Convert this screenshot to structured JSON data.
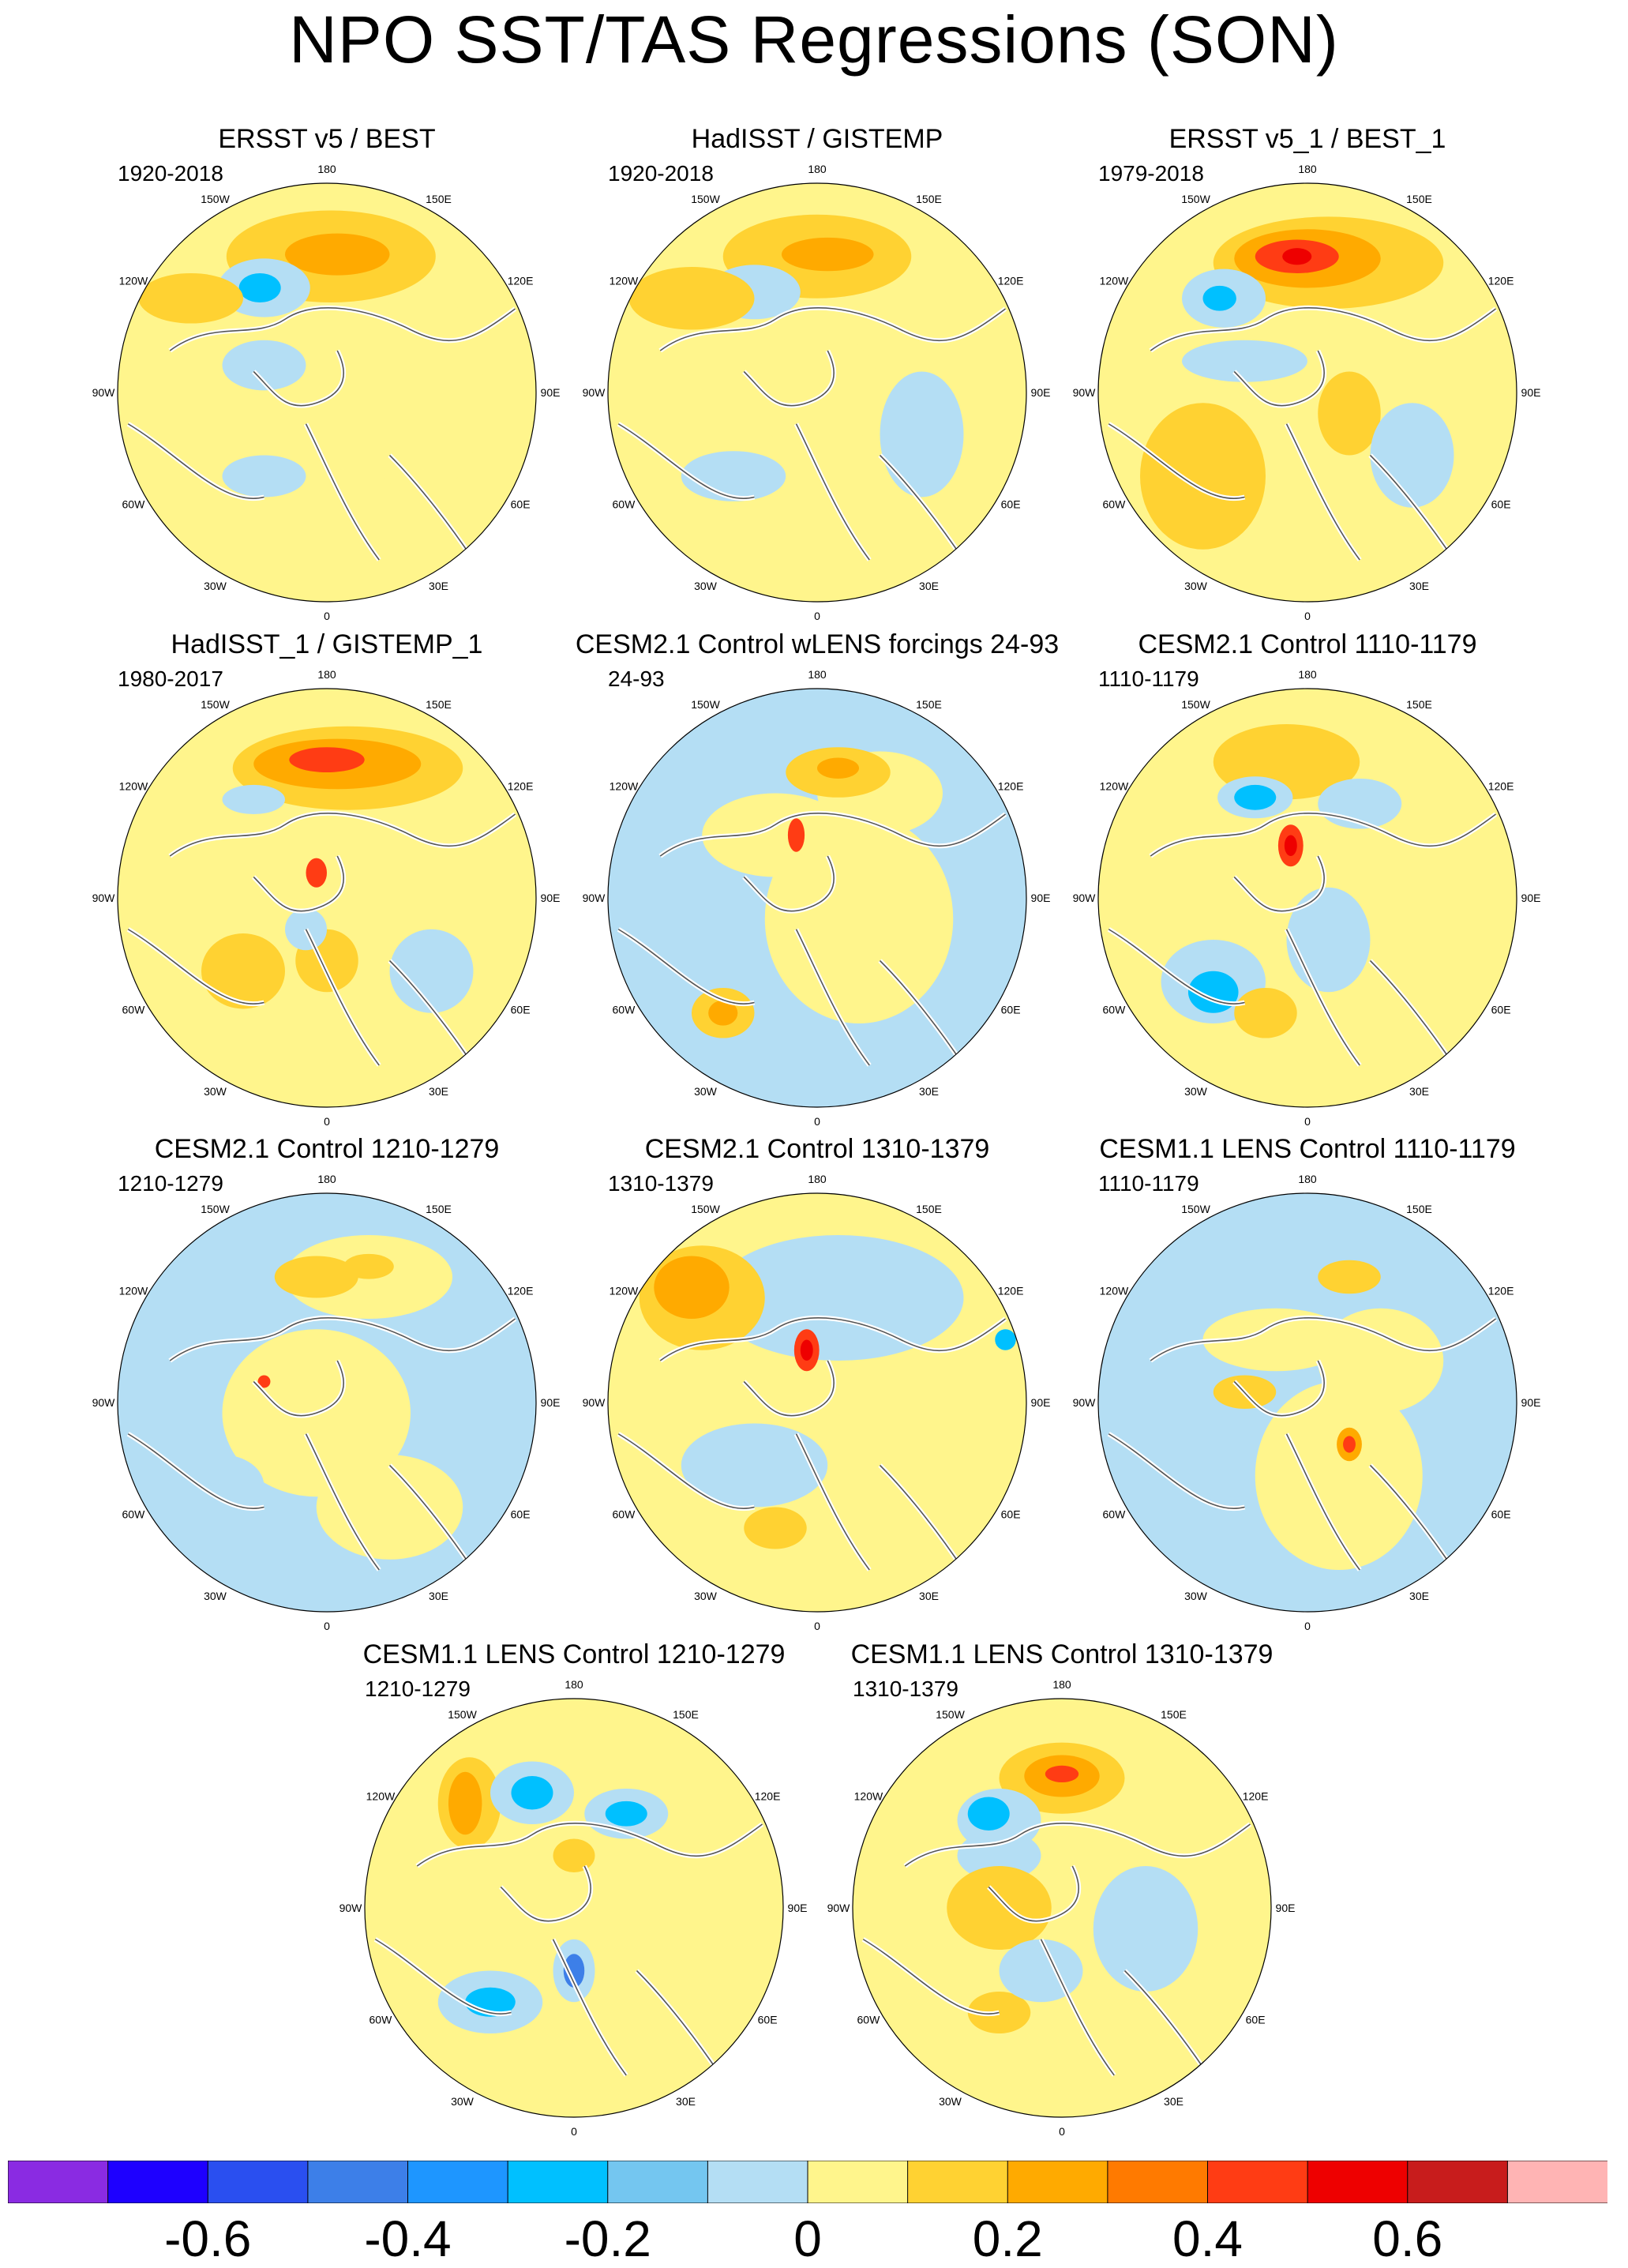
{
  "title": "NPO SST/TAS Regressions (SON)",
  "panels": [
    {
      "title": "ERSST v5 / BEST",
      "period": "1920-2018",
      "pattern": [
        [
          "ocean",
          -0.3,
          -0.13,
          0.2,
          0.12
        ],
        [
          "pos",
          0.02,
          -0.65,
          0.5,
          0.22
        ],
        [
          "pos2",
          0.05,
          -0.66,
          0.25,
          0.1
        ],
        [
          "neg",
          -0.3,
          -0.5,
          0.22,
          0.14
        ],
        [
          "neg2",
          -0.32,
          -0.5,
          0.1,
          0.07
        ],
        [
          "pos",
          -0.65,
          -0.45,
          0.25,
          0.12
        ],
        [
          "neg",
          -0.3,
          0.4,
          0.2,
          0.1
        ],
        [
          "land",
          0.45,
          0.0,
          0.3,
          0.5
        ]
      ]
    },
    {
      "title": "HadISST / GISTEMP",
      "period": "1920-2018",
      "pattern": [
        [
          "pos",
          0.0,
          -0.65,
          0.45,
          0.2
        ],
        [
          "pos2",
          0.05,
          -0.66,
          0.22,
          0.08
        ],
        [
          "neg",
          -0.3,
          -0.48,
          0.22,
          0.13
        ],
        [
          "pos",
          -0.6,
          -0.45,
          0.3,
          0.15
        ],
        [
          "neg",
          0.5,
          0.2,
          0.2,
          0.3
        ],
        [
          "neg",
          -0.4,
          0.4,
          0.25,
          0.12
        ],
        [
          "land",
          0.0,
          0.0,
          0.3,
          0.3
        ]
      ]
    },
    {
      "title": "ERSST v5_1 / BEST_1",
      "period": "1979-2018",
      "pattern": [
        [
          "pos",
          0.1,
          -0.62,
          0.55,
          0.22
        ],
        [
          "pos2",
          0.0,
          -0.64,
          0.35,
          0.14
        ],
        [
          "pos3",
          -0.05,
          -0.65,
          0.2,
          0.08
        ],
        [
          "pos4",
          -0.05,
          -0.65,
          0.07,
          0.04
        ],
        [
          "neg",
          -0.4,
          -0.45,
          0.2,
          0.14
        ],
        [
          "neg2",
          -0.42,
          -0.45,
          0.08,
          0.06
        ],
        [
          "pos",
          -0.5,
          0.4,
          0.3,
          0.35
        ],
        [
          "pos",
          0.2,
          0.1,
          0.15,
          0.2
        ],
        [
          "neg",
          0.5,
          0.3,
          0.2,
          0.25
        ],
        [
          "neg",
          -0.3,
          -0.15,
          0.3,
          0.1
        ]
      ]
    },
    {
      "title": "HadISST_1 / GISTEMP_1",
      "period": "1980-2017",
      "pattern": [
        [
          "pos",
          0.1,
          -0.62,
          0.55,
          0.2
        ],
        [
          "pos2",
          0.05,
          -0.64,
          0.4,
          0.12
        ],
        [
          "pos3",
          0.0,
          -0.66,
          0.18,
          0.06
        ],
        [
          "neg",
          -0.35,
          -0.47,
          0.15,
          0.07
        ],
        [
          "pos3",
          -0.05,
          -0.12,
          0.05,
          0.07
        ],
        [
          "pos",
          -0.4,
          0.35,
          0.2,
          0.18
        ],
        [
          "pos",
          0.0,
          0.3,
          0.15,
          0.15
        ],
        [
          "neg",
          0.5,
          0.35,
          0.2,
          0.2
        ],
        [
          "neg",
          -0.1,
          0.15,
          0.1,
          0.1
        ]
      ]
    },
    {
      "title": "CESM2.1 Control wLENS forcings 24-93",
      "period": "24-93",
      "pattern": [
        [
          "neg",
          0.0,
          0.0,
          1.0,
          1.0
        ],
        [
          "bg",
          0.2,
          0.1,
          0.45,
          0.5
        ],
        [
          "bg",
          -0.2,
          -0.3,
          0.35,
          0.2
        ],
        [
          "bg",
          0.3,
          -0.5,
          0.3,
          0.2
        ],
        [
          "pos",
          0.1,
          -0.6,
          0.25,
          0.12
        ],
        [
          "pos2",
          0.1,
          -0.62,
          0.1,
          0.05
        ],
        [
          "pos",
          -0.45,
          0.55,
          0.15,
          0.12
        ],
        [
          "pos2",
          -0.45,
          0.55,
          0.07,
          0.06
        ],
        [
          "pos3",
          -0.1,
          -0.3,
          0.04,
          0.08
        ]
      ]
    },
    {
      "title": "CESM2.1 Control 1110-1179",
      "period": "1110-1179",
      "pattern": [
        [
          "pos",
          -0.1,
          -0.65,
          0.35,
          0.18
        ],
        [
          "neg",
          -0.25,
          -0.48,
          0.18,
          0.1
        ],
        [
          "neg2",
          -0.25,
          -0.48,
          0.1,
          0.06
        ],
        [
          "neg",
          0.25,
          -0.45,
          0.2,
          0.12
        ],
        [
          "pos3",
          -0.08,
          -0.25,
          0.06,
          0.1
        ],
        [
          "pos4",
          -0.08,
          -0.25,
          0.03,
          0.05
        ],
        [
          "neg",
          -0.45,
          0.4,
          0.25,
          0.2
        ],
        [
          "neg2",
          -0.45,
          0.45,
          0.12,
          0.1
        ],
        [
          "pos",
          -0.2,
          0.55,
          0.15,
          0.12
        ],
        [
          "neg",
          0.1,
          0.2,
          0.2,
          0.25
        ]
      ]
    },
    {
      "title": "CESM2.1 Control 1210-1279",
      "period": "1210-1279",
      "pattern": [
        [
          "neg",
          0.0,
          0.0,
          1.0,
          1.0
        ],
        [
          "bg",
          -0.05,
          0.05,
          0.45,
          0.4
        ],
        [
          "bg",
          0.3,
          0.5,
          0.35,
          0.25
        ],
        [
          "bg",
          0.2,
          -0.6,
          0.4,
          0.2
        ],
        [
          "pos",
          -0.05,
          -0.6,
          0.2,
          0.1
        ],
        [
          "pos",
          0.2,
          -0.65,
          0.12,
          0.06
        ],
        [
          "neg",
          -0.25,
          -0.45,
          0.12,
          0.08
        ],
        [
          "neg",
          -0.5,
          0.4,
          0.2,
          0.15
        ],
        [
          "pos3",
          -0.3,
          -0.1,
          0.03,
          0.03
        ]
      ]
    },
    {
      "title": "CESM2.1 Control 1310-1379",
      "period": "1310-1379",
      "pattern": [
        [
          "neg",
          0.1,
          -0.5,
          0.6,
          0.3
        ],
        [
          "pos",
          -0.55,
          -0.5,
          0.3,
          0.25
        ],
        [
          "pos2",
          -0.6,
          -0.55,
          0.18,
          0.15
        ],
        [
          "pos3",
          -0.05,
          -0.25,
          0.06,
          0.1
        ],
        [
          "pos4",
          -0.05,
          -0.25,
          0.03,
          0.05
        ],
        [
          "neg",
          -0.3,
          0.3,
          0.35,
          0.2
        ],
        [
          "pos",
          -0.2,
          0.6,
          0.15,
          0.1
        ],
        [
          "neg2",
          0.9,
          -0.3,
          0.05,
          0.05
        ]
      ]
    },
    {
      "title": "CESM1.1 LENS Control 1110-1179",
      "period": "1110-1179",
      "pattern": [
        [
          "neg",
          0.0,
          0.0,
          1.0,
          1.0
        ],
        [
          "bg",
          0.15,
          0.35,
          0.4,
          0.45
        ],
        [
          "bg",
          0.35,
          -0.2,
          0.3,
          0.25
        ],
        [
          "bg",
          -0.15,
          -0.3,
          0.35,
          0.15
        ],
        [
          "pos",
          0.2,
          -0.6,
          0.15,
          0.08
        ],
        [
          "pos",
          -0.3,
          -0.05,
          0.15,
          0.08
        ],
        [
          "pos2",
          0.2,
          0.2,
          0.06,
          0.08
        ],
        [
          "pos3",
          0.2,
          0.2,
          0.03,
          0.04
        ]
      ]
    },
    {
      "title": "CESM1.1 LENS Control 1210-1279",
      "period": "1210-1279",
      "pattern": [
        [
          "pos",
          -0.5,
          -0.5,
          0.15,
          0.22
        ],
        [
          "pos2",
          -0.52,
          -0.5,
          0.08,
          0.15
        ],
        [
          "neg",
          -0.2,
          -0.55,
          0.2,
          0.15
        ],
        [
          "neg2",
          -0.2,
          -0.55,
          0.1,
          0.08
        ],
        [
          "neg",
          0.25,
          -0.45,
          0.2,
          0.12
        ],
        [
          "neg2",
          0.25,
          -0.45,
          0.1,
          0.06
        ],
        [
          "neg",
          -0.4,
          0.45,
          0.25,
          0.15
        ],
        [
          "neg2",
          -0.4,
          0.45,
          0.12,
          0.07
        ],
        [
          "neg",
          0.0,
          0.3,
          0.1,
          0.15
        ],
        [
          "neg3",
          0.0,
          0.3,
          0.05,
          0.08
        ],
        [
          "pos",
          0.0,
          -0.25,
          0.1,
          0.08
        ]
      ]
    },
    {
      "title": "CESM1.1 LENS Control 1310-1379",
      "period": "1310-1379",
      "pattern": [
        [
          "neg",
          -0.3,
          -0.25,
          0.2,
          0.12
        ],
        [
          "pos",
          0.0,
          -0.62,
          0.3,
          0.17
        ],
        [
          "pos2",
          0.0,
          -0.63,
          0.18,
          0.1
        ],
        [
          "pos3",
          0.0,
          -0.64,
          0.08,
          0.04
        ],
        [
          "neg",
          -0.3,
          -0.42,
          0.2,
          0.15
        ],
        [
          "neg2",
          -0.35,
          -0.45,
          0.1,
          0.08
        ],
        [
          "pos",
          -0.3,
          0.0,
          0.25,
          0.2
        ],
        [
          "neg",
          0.4,
          0.1,
          0.25,
          0.3
        ],
        [
          "pos",
          -0.3,
          0.5,
          0.15,
          0.1
        ],
        [
          "neg",
          -0.1,
          0.3,
          0.2,
          0.15
        ]
      ]
    }
  ],
  "ticks": {
    "top": "180",
    "bottom": "0",
    "left": "90W",
    "right": "90E",
    "ul1": "150W",
    "ul2": "120W",
    "ur1": "150E",
    "ur2": "120E",
    "ll1": "60W",
    "ll2": "30W",
    "lr1": "60E",
    "lr2": "30E"
  },
  "colorbar": {
    "colors": [
      "#8a2be2",
      "#1e00ff",
      "#2a4ff0",
      "#3d7fe8",
      "#1e96ff",
      "#00c0ff",
      "#74c6f0",
      "#b4def4",
      "#fff58c",
      "#ffd232",
      "#ffaa00",
      "#ff7a00",
      "#ff3c14",
      "#ee0000",
      "#c81c1c",
      "#ffb4b4"
    ],
    "labels": [
      "-0.6",
      "-0.4",
      "-0.2",
      "0",
      "0.2",
      "0.4",
      "0.6"
    ]
  },
  "palette": {
    "bg": "#fff58c",
    "neg": "#b4def4",
    "neg2": "#00c0ff",
    "neg3": "#3d7fe8",
    "pos": "#ffd232",
    "pos2": "#ffaa00",
    "pos3": "#ff3c14",
    "pos4": "#ee0000",
    "ocean": "#b4def4",
    "land": "#fff58c"
  }
}
